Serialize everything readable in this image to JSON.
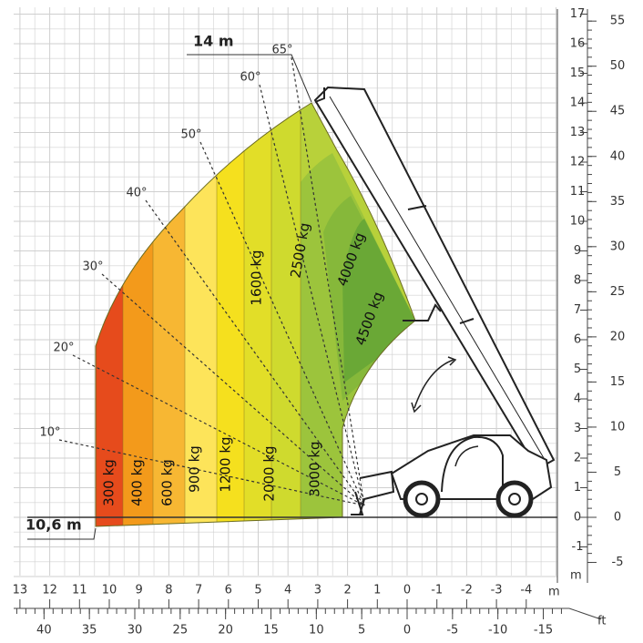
{
  "max_height": "14 m",
  "max_reach": "10,6 m",
  "angles": [
    "65°",
    "60°",
    "50°",
    "40°",
    "30°",
    "20°",
    "10°"
  ],
  "loads": [
    "300 kg",
    "400 kg",
    "600 kg",
    "900 kg",
    "1200 kg",
    "1600 kg",
    "2000 kg",
    "2500 kg",
    "3000 kg",
    "4000 kg",
    "4500 kg"
  ],
  "right_axis": {
    "meters": [
      17,
      16,
      15,
      14,
      13,
      12,
      11,
      10,
      9,
      8,
      7,
      6,
      5,
      4,
      3,
      2,
      1,
      0,
      -1
    ],
    "meters_unit": "m",
    "feet": [
      55,
      50,
      45,
      40,
      35,
      30,
      25,
      20,
      15,
      10,
      5,
      0,
      -5
    ]
  },
  "bottom_axis": {
    "meters": [
      13,
      12,
      11,
      10,
      9,
      8,
      7,
      6,
      5,
      4,
      3,
      2,
      1,
      0,
      -1,
      -2,
      -3,
      -4
    ],
    "meters_unit": "m",
    "feet": [
      40,
      35,
      30,
      25,
      20,
      15,
      10,
      5,
      0,
      -5,
      -10,
      -15
    ],
    "feet_unit": "ft"
  }
}
